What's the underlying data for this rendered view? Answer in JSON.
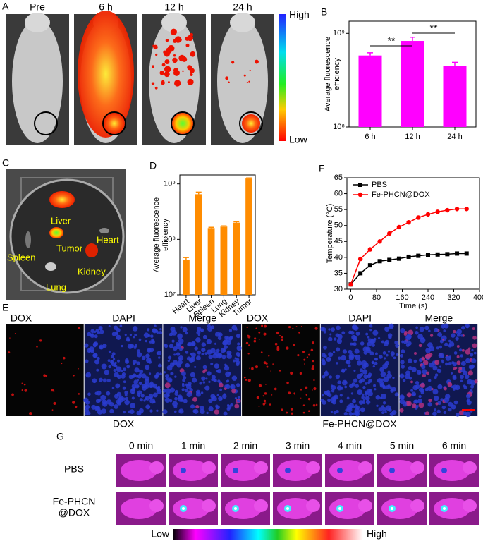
{
  "panels": {
    "A": {
      "label": "A",
      "images": [
        "Pre",
        "6 h",
        "12 h",
        "24 h"
      ],
      "colorbar": {
        "high": "High",
        "low": "Low"
      }
    },
    "C": {
      "label": "C",
      "organs": [
        "Liver",
        "Tumor",
        "Heart",
        "Spleen",
        "Kidney",
        "Lung"
      ]
    },
    "E": {
      "label": "E",
      "headers": [
        "DOX",
        "DAPI",
        "Merge",
        "DOX",
        "DAPI",
        "Merge"
      ],
      "groups": [
        "DOX",
        "Fe-PHCN@DOX"
      ]
    },
    "G": {
      "label": "G",
      "times": [
        "0 min",
        "1 min",
        "2 min",
        "3 min",
        "4 min",
        "5 min",
        "6 min"
      ],
      "rows": [
        [
          "PBS"
        ],
        [
          "Fe-PHCN",
          "@DOX"
        ]
      ],
      "colorbar": {
        "low": "Low",
        "high": "High"
      }
    }
  },
  "chart_data": [
    {
      "type": "bar",
      "panel": "B",
      "ylabel": [
        "Average fluorescence",
        "efficiency"
      ],
      "log_y": true,
      "categories": [
        "6 h",
        "12 h",
        "24 h"
      ],
      "values": [
        580000000,
        830000000,
        450000000
      ],
      "errors": [
        40000000,
        80000000,
        40000000
      ],
      "color": "#ff00ff",
      "ylim": [
        100000000,
        1350000000
      ],
      "yticks": [
        {
          "value": 100000000,
          "label": "10⁸"
        },
        {
          "value": 1000000000,
          "label": "10⁹"
        }
      ],
      "annotations": [
        "**",
        "**"
      ]
    },
    {
      "type": "bar",
      "panel": "D",
      "ylabel": [
        "Average fluorescence",
        "efficiency"
      ],
      "log_y": true,
      "categories": [
        "Heart",
        "Liver",
        "Spleen",
        "Lung",
        "Kidney",
        "Tumor"
      ],
      "values": [
        42000000,
        650000000,
        160000000,
        170000000,
        200000000,
        1250000000
      ],
      "errors": [
        5000000,
        60000000,
        5000000,
        5000000,
        8000000,
        30000000
      ],
      "color": "#ff8c00",
      "ylim": [
        10000000,
        1450000000
      ],
      "yticks": [
        {
          "value": 10000000,
          "label": "10⁷"
        },
        {
          "value": 100000000,
          "label": "10⁸"
        },
        {
          "value": 1000000000,
          "label": "10⁹"
        }
      ]
    },
    {
      "type": "line",
      "panel": "F",
      "xlabel": "Time (s)",
      "ylabel": [
        "Temperature (°C)"
      ],
      "x": [
        0,
        30,
        60,
        90,
        120,
        150,
        180,
        210,
        240,
        270,
        300,
        330,
        360
      ],
      "series": [
        {
          "name": "PBS",
          "color": "#000000",
          "marker": "square",
          "values": [
            31.5,
            35,
            37.5,
            38.8,
            39.2,
            39.6,
            40.2,
            40.5,
            40.8,
            40.9,
            41,
            41.2,
            41.2
          ]
        },
        {
          "name": "Fe-PHCN@DOX",
          "color": "#ff0000",
          "marker": "circle",
          "values": [
            31.5,
            39.5,
            42.5,
            45,
            47.5,
            49.5,
            51,
            52.5,
            53.5,
            54.3,
            54.8,
            55.2,
            55.2
          ]
        }
      ],
      "xlim": [
        -12,
        400
      ],
      "xticks": [
        0,
        80,
        160,
        240,
        320,
        400
      ],
      "ylim": [
        30,
        65
      ],
      "yticks": [
        30,
        35,
        40,
        45,
        50,
        55,
        60,
        65
      ],
      "legend": "upper left"
    }
  ]
}
